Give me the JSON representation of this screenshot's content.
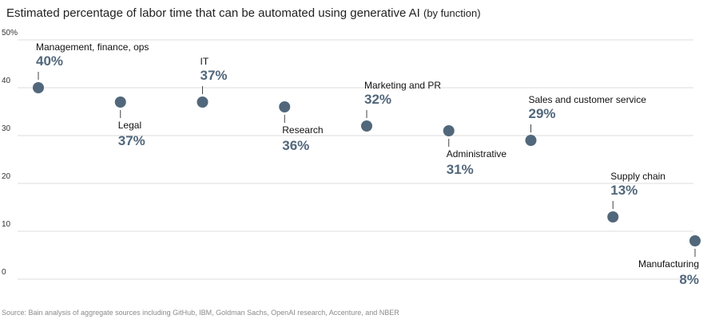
{
  "chart_data": {
    "type": "scatter",
    "title": "Estimated percentage of labor time that can be automated using generative AI",
    "subtitle": "(by function)",
    "ylim": [
      0,
      50
    ],
    "yticks": [
      "0",
      "10",
      "20",
      "30",
      "40",
      "50%"
    ],
    "grid": true,
    "categories": [
      "Management, finance, ops",
      "Legal",
      "IT",
      "Research",
      "Marketing and PR",
      "Administrative",
      "Sales and customer service",
      "Supply chain",
      "Manufacturing"
    ],
    "values": [
      40,
      37,
      37,
      36,
      32,
      31,
      29,
      13,
      8
    ],
    "value_labels": [
      "40%",
      "37%",
      "37%",
      "36%",
      "32%",
      "31%",
      "29%",
      "13%",
      "8%"
    ],
    "label_positions": [
      "above",
      "below",
      "above",
      "below",
      "above",
      "below",
      "above",
      "above",
      "below"
    ],
    "marker_color": "#51677b",
    "value_label_color": "#51677b"
  },
  "source": "Source: Bain analysis of aggregate sources including GitHub, IBM, Goldman Sachs, OpenAI research, Accenture, and NBER"
}
